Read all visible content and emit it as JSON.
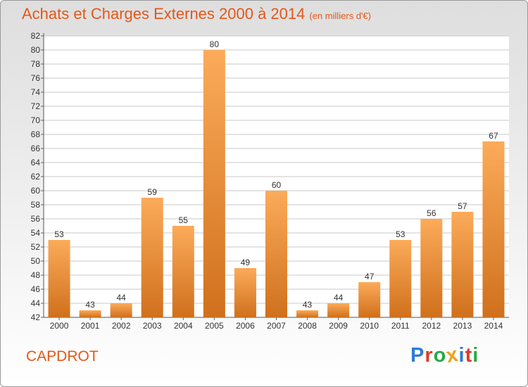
{
  "header": {
    "title": "Achats et Charges Externes 2000 à 2014",
    "unit": "(en milliers d'€)"
  },
  "footer": {
    "commune": "CAPDROT",
    "brand_letters": [
      {
        "ch": "P",
        "color": "#2e7bd6"
      },
      {
        "ch": "r",
        "color": "#e03a2a"
      },
      {
        "ch": "o",
        "color": "#2aa84a"
      },
      {
        "ch": "x",
        "color": "#f0a21a"
      },
      {
        "ch": "i",
        "color": "#2e7bd6"
      },
      {
        "ch": "t",
        "color": "#e03a2a"
      },
      {
        "ch": "i",
        "color": "#2aa84a"
      }
    ]
  },
  "colors": {
    "bar_top": "#fbab5a",
    "bar_bottom": "#d0701c",
    "grid": "#c8c8c8",
    "accent": "#e2581a"
  },
  "chart_data": {
    "type": "bar",
    "categories": [
      "2000",
      "2001",
      "2002",
      "2003",
      "2004",
      "2005",
      "2006",
      "2007",
      "2008",
      "2009",
      "2010",
      "2011",
      "2012",
      "2013",
      "2014"
    ],
    "values": [
      53,
      43,
      44,
      59,
      55,
      80,
      49,
      60,
      43,
      44,
      47,
      53,
      56,
      57,
      67
    ],
    "ylim": [
      42,
      82
    ],
    "ytick_step": 2,
    "grid": true,
    "legend": "none"
  }
}
